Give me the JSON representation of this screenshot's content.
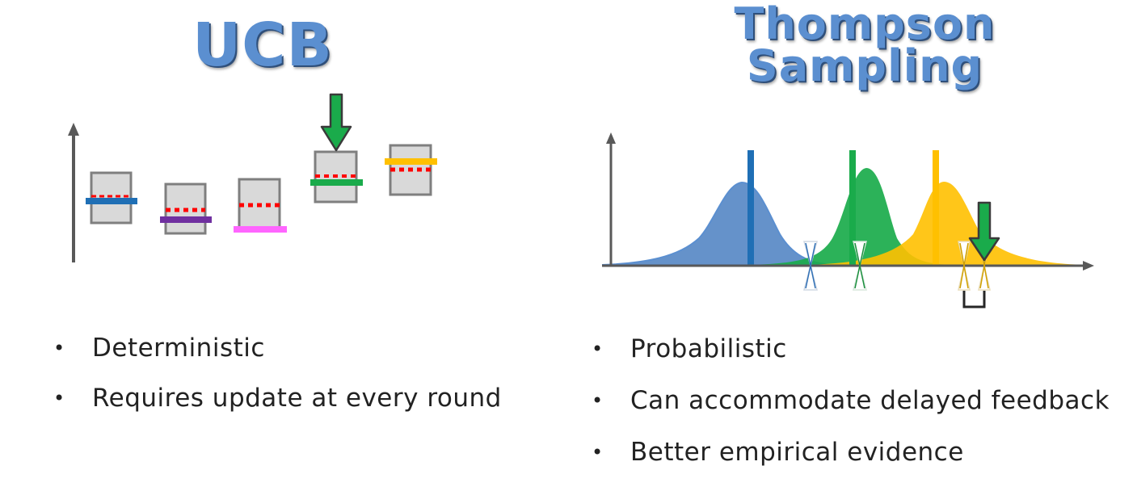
{
  "ucb": {
    "title": "UCB",
    "bullets": [
      "Deterministic",
      "Requires update at every round"
    ],
    "arm_colors": [
      "#1f6fb5",
      "#7030a0",
      "#ff66ff",
      "#1aab4b",
      "#ffc000"
    ]
  },
  "thompson": {
    "title_line1": "Thompson",
    "title_line2": "Sampling",
    "bullets": [
      "Probabilistic",
      "Can accommodate delayed feedback",
      "Better empirical evidence"
    ],
    "distribution_colors": [
      "#5b8fd0",
      "#1aab4b",
      "#ffc000"
    ]
  },
  "colors": {
    "title": "#5b8fd0",
    "selection_arrow": "#1aab4b",
    "confidence_box": "#d9d9d9",
    "box_border": "#7f7f7f",
    "observed_mean": "#ff0000"
  }
}
